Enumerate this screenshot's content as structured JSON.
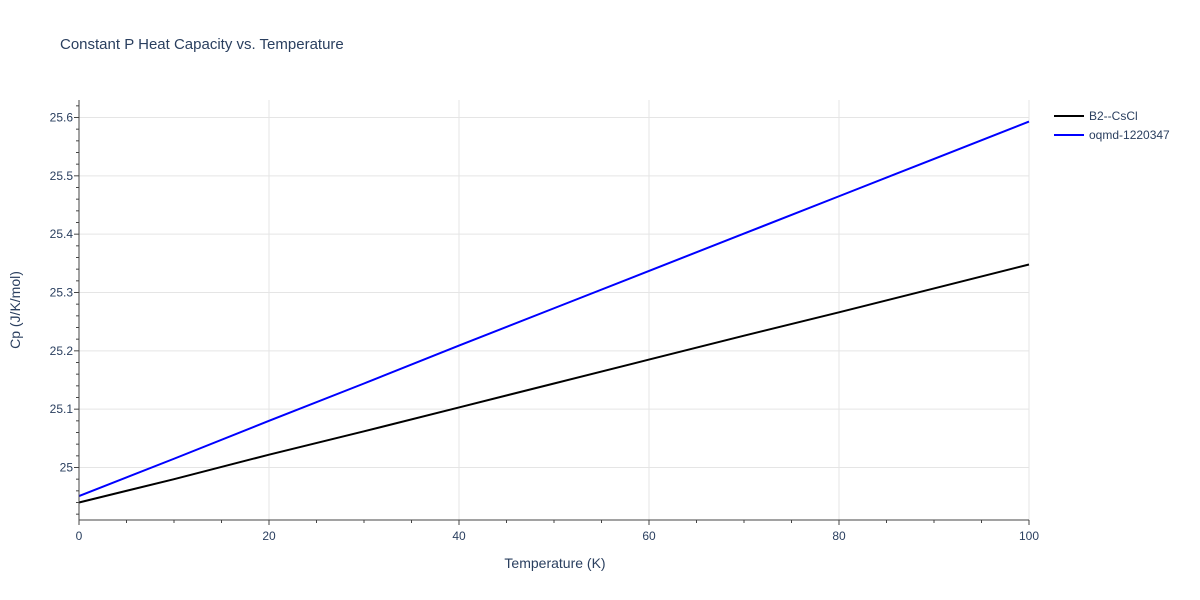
{
  "chart_data": {
    "type": "line",
    "title": "Constant P Heat Capacity vs. Temperature",
    "xlabel": "Temperature (K)",
    "ylabel": "Cp (J/K/mol)",
    "xlim": [
      0,
      100
    ],
    "ylim": [
      24.91,
      25.63
    ],
    "xticks": [
      0,
      20,
      40,
      60,
      80,
      100
    ],
    "xtick_labels": [
      "0",
      "20",
      "40",
      "60",
      "80",
      "100"
    ],
    "yticks": [
      25.0,
      25.1,
      25.2,
      25.3,
      25.4,
      25.5,
      25.6
    ],
    "ytick_labels": [
      "25",
      "25.1",
      "25.2",
      "25.3",
      "25.4",
      "25.5",
      "25.6"
    ],
    "grid": true,
    "legend_position": "top-right outside",
    "series": [
      {
        "name": "B2--CsCl",
        "color": "#000000",
        "x": [
          0,
          10,
          20,
          30,
          40,
          50,
          60,
          70,
          80,
          90,
          100
        ],
        "y": [
          24.94,
          24.98,
          25.022,
          25.062,
          25.103,
          25.144,
          25.185,
          25.226,
          25.266,
          25.307,
          25.348
        ]
      },
      {
        "name": "oqmd-1220347",
        "color": "#0000ff",
        "x": [
          0,
          10,
          20,
          30,
          40,
          50,
          60,
          70,
          80,
          90,
          100
        ],
        "y": [
          24.951,
          25.015,
          25.08,
          25.144,
          25.209,
          25.273,
          25.337,
          25.401,
          25.465,
          25.529,
          25.593
        ]
      }
    ]
  }
}
